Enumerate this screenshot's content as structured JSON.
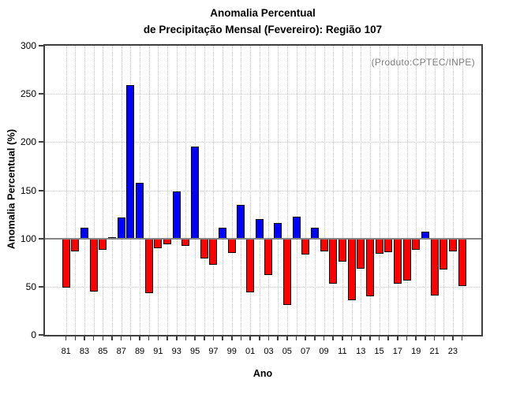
{
  "title": {
    "line1": "Anomalia Percentual",
    "line2": "de Precipitação Mensal (Fevereiro): Região 107"
  },
  "source_note": "(Produto:CPTEC/INPE)",
  "axes": {
    "y_label": "Anomalia Percentual (%)",
    "x_label": "Ano",
    "y_ticks": [
      0,
      50,
      100,
      150,
      200,
      250,
      300
    ],
    "labeled_years": [
      "81",
      "83",
      "85",
      "87",
      "89",
      "91",
      "93",
      "95",
      "97",
      "99",
      "01",
      "03",
      "05",
      "07",
      "09",
      "11",
      "13",
      "15",
      "17",
      "19",
      "21",
      "23"
    ]
  },
  "colors": {
    "above_baseline": "#0000ff",
    "below_baseline": "#ff0000",
    "bar_border": "#000000",
    "baseline_line": "#858585",
    "grid": "#c9c9c9",
    "frame": "#3f3f3f",
    "note_gray": "#7f7f7f"
  },
  "chart_data": {
    "type": "bar",
    "title": "Anomalia Percentual de Precipitação Mensal (Fevereiro): Região 107",
    "xlabel": "Ano",
    "ylabel": "Anomalia Percentual (%)",
    "ylim": [
      0,
      300
    ],
    "baseline": 100,
    "grid": true,
    "annotation": "(Produto:CPTEC/INPE)",
    "color_rule": "blue if value >= 100 else red",
    "categories": [
      "81",
      "82",
      "83",
      "84",
      "85",
      "86",
      "87",
      "88",
      "89",
      "90",
      "91",
      "92",
      "93",
      "94",
      "95",
      "96",
      "97",
      "98",
      "99",
      "00",
      "01",
      "02",
      "03",
      "04",
      "05",
      "06",
      "07",
      "08",
      "09",
      "10",
      "11",
      "12",
      "13",
      "14",
      "15",
      "16",
      "17",
      "18",
      "19",
      "20",
      "21",
      "22",
      "23",
      "24"
    ],
    "values": [
      49,
      87,
      111,
      45,
      88,
      101,
      122,
      259,
      158,
      43,
      90,
      94,
      149,
      92,
      195,
      79,
      73,
      111,
      85,
      135,
      44,
      120,
      62,
      116,
      31,
      123,
      83,
      111,
      87,
      53,
      76,
      36,
      69,
      40,
      84,
      86,
      53,
      56,
      88,
      107,
      41,
      68,
      87,
      51
    ]
  }
}
